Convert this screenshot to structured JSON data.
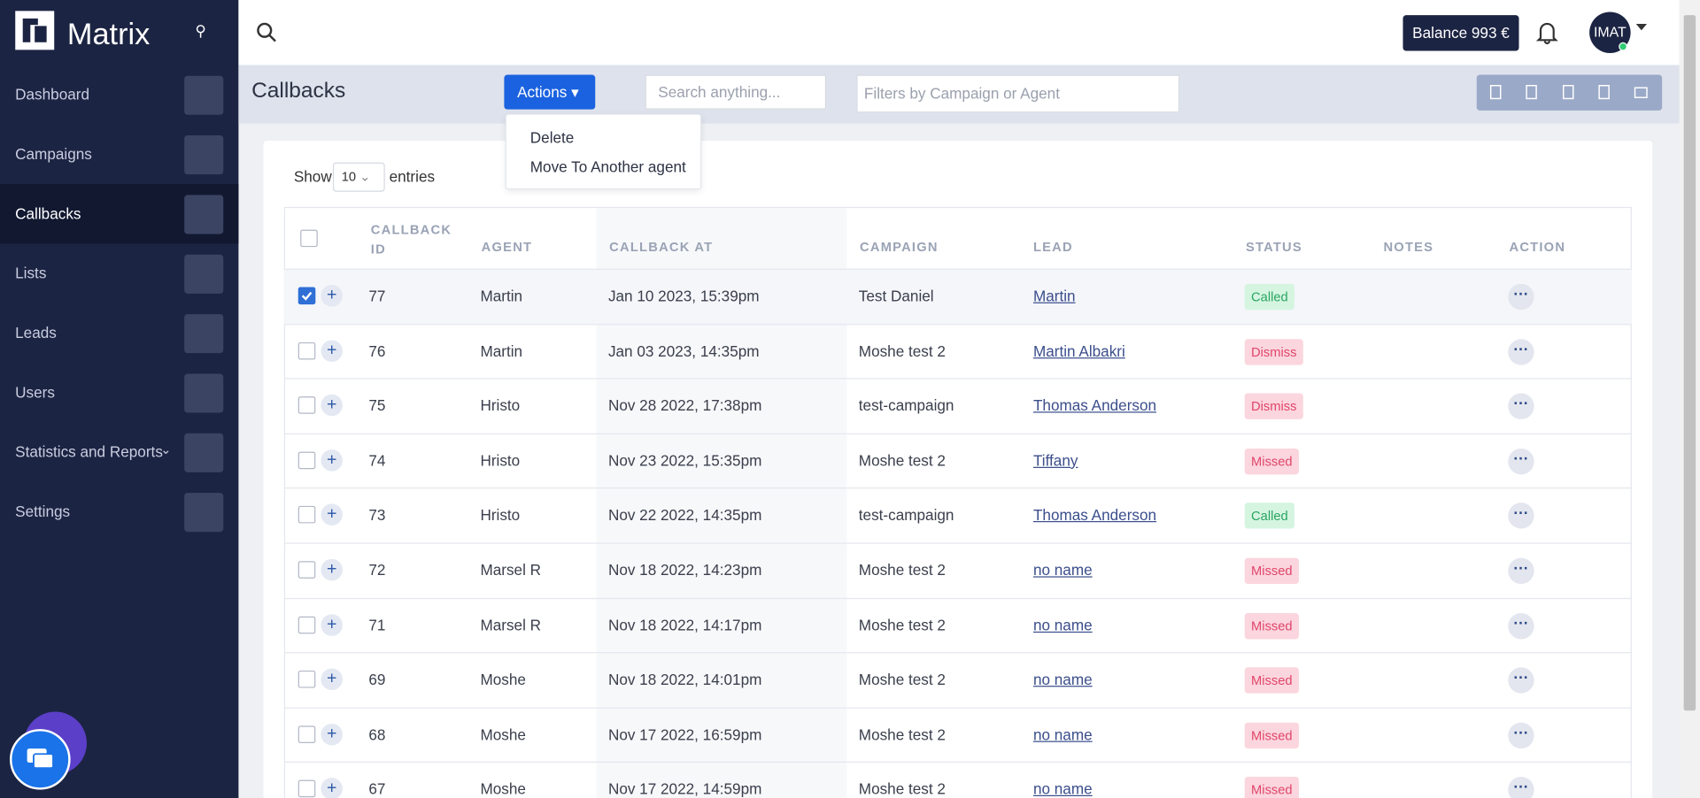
{
  "brand": "Matrix",
  "nav": [
    "Dashboard",
    "Campaigns",
    "Callbacks",
    "Lists",
    "Leads",
    "Users",
    "Statistics and Reports",
    "Settings"
  ],
  "topbar": {
    "balance": "Balance 993 €",
    "user": "IMAT"
  },
  "page": {
    "title": "Callbacks",
    "actions": "Actions",
    "search_placeholder": "Search anything...",
    "filter_placeholder": "Filters by Campaign or Agent",
    "show": "Show",
    "page_size": "10",
    "entries": "entries"
  },
  "menu": [
    "Delete",
    "Move To Another agent"
  ],
  "table": {
    "columns": [
      "CALLBACK ID",
      "AGENT",
      "CALLBACK AT",
      "CAMPAIGN",
      "LEAD",
      "STATUS",
      "NOTES",
      "ACTION"
    ],
    "rows": [
      [
        "77",
        "Martin",
        "Jan 10 2023, 15:39pm",
        "Test Daniel",
        "Martin",
        "Called"
      ],
      [
        "76",
        "Martin",
        "Jan 03 2023, 14:35pm",
        "Moshe test 2",
        "Martin Albakri",
        "Dismiss"
      ],
      [
        "75",
        "Hristo",
        "Nov 28 2022, 17:38pm",
        "test-campaign",
        "Thomas Anderson",
        "Dismiss"
      ],
      [
        "74",
        "Hristo",
        "Nov 23 2022, 15:35pm",
        "Moshe test 2",
        "Tiffany",
        "Missed"
      ],
      [
        "73",
        "Hristo",
        "Nov 22 2022, 14:35pm",
        "test-campaign",
        "Thomas Anderson",
        "Called"
      ],
      [
        "72",
        "Marsel R",
        "Nov 18 2022, 14:23pm",
        "Moshe test 2",
        "no name",
        "Missed"
      ],
      [
        "71",
        "Marsel R",
        "Nov 18 2022, 14:17pm",
        "Moshe test 2",
        "no name",
        "Missed"
      ],
      [
        "69",
        "Moshe",
        "Nov 18 2022, 14:01pm",
        "Moshe test 2",
        "no name",
        "Missed"
      ],
      [
        "68",
        "Moshe",
        "Nov 17 2022, 16:59pm",
        "Moshe test 2",
        "no name",
        "Missed"
      ],
      [
        "67",
        "Moshe",
        "Nov 17 2022, 14:59pm",
        "Moshe test 2",
        "no name",
        "Missed"
      ]
    ]
  }
}
